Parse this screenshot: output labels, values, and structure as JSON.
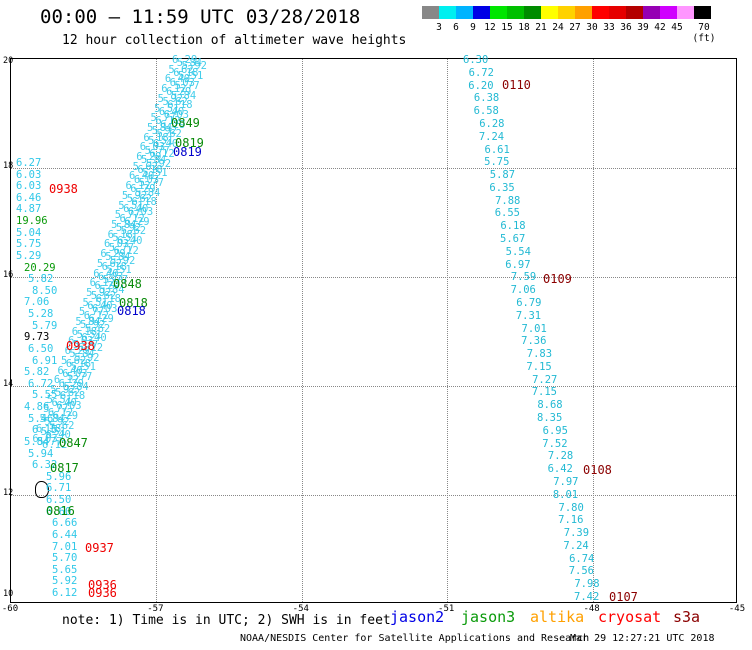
{
  "header": {
    "title": "00:00 – 11:59 UTC 03/28/2018",
    "subtitle": "12 hour collection of altimeter wave heights"
  },
  "legend": {
    "colors": [
      "#888888",
      "#00f0f0",
      "#00b4ff",
      "#0000e6",
      "#00e600",
      "#00c000",
      "#008c00",
      "#ffff00",
      "#ffd200",
      "#ffa000",
      "#ff0000",
      "#e60000",
      "#b40000",
      "#9600b4",
      "#d000ff",
      "#ff96ff",
      "#000000"
    ],
    "labels": [
      "3",
      "6",
      "9",
      "12",
      "15",
      "18",
      "21",
      "24",
      "27",
      "30",
      "33",
      "36",
      "39",
      "42",
      "45",
      "70 (ft)"
    ]
  },
  "map": {
    "lat_labels": [
      "20",
      "18",
      "16",
      "14",
      "12",
      "10"
    ],
    "lon_labels": [
      "-60",
      "-57",
      "-54",
      "-51",
      "-48",
      "-45"
    ]
  },
  "tracks": {
    "east": {
      "values": [
        "6.30",
        "6.72",
        "6.20",
        "6.38",
        "6.58",
        "6.28",
        "7.24",
        "6.61",
        "5.75",
        "5.87",
        "6.35",
        "7.88",
        "6.55",
        "6.18",
        "5.67",
        "5.54",
        "6.97",
        "7.59",
        "7.06",
        "6.79",
        "7.31",
        "7.01",
        "7.36",
        "7.83",
        "7.15",
        "7.27",
        "7.15",
        "8.68",
        "8.35",
        "6.95",
        "7.52",
        "7.28",
        "6.42",
        "7.97",
        "8.01",
        "7.80",
        "7.16",
        "7.39",
        "7.24",
        "6.74",
        "7.56",
        "7.98",
        "7.42"
      ],
      "times": [
        "0110",
        "0109",
        "0108",
        "0107"
      ]
    },
    "west_column": {
      "values": [
        "6.27",
        "6.03",
        "6.03",
        "6.46",
        "4.87",
        "19.96",
        "5.04",
        "5.75",
        "5.29",
        "20.29",
        "5.82",
        "8.50",
        "7.06",
        "5.28",
        "5.79",
        "9.73",
        "6.50",
        "6.91",
        "5.82",
        "6.72",
        "5.55",
        "4.86",
        "5.46",
        "6.15",
        "5.84",
        "5.94",
        "6.32",
        "5.96",
        "6.71",
        "6.50",
        "6.60",
        "6.66",
        "6.44",
        "7.01",
        "5.70",
        "5.65",
        "5.92",
        "6.12"
      ],
      "times_red": [
        "0938",
        "0938",
        "0937",
        "0936",
        "0936"
      ],
      "times_green": [
        "0849",
        "0819",
        "0848",
        "0818",
        "0847",
        "0817",
        "0816"
      ],
      "times_blue": [
        "0819",
        "0818"
      ]
    }
  },
  "footer": {
    "note": "note: 1) Time is in UTC; 2) SWH is in feet",
    "satellites": [
      {
        "name": "jason2",
        "color": "#0000e6"
      },
      {
        "name": "jason3",
        "color": "#0a9a0a"
      },
      {
        "name": "altika",
        "color": "#ffa000"
      },
      {
        "name": "cryosat",
        "color": "#ff0000"
      },
      {
        "name": "s3a",
        "color": "#8b0000"
      }
    ],
    "credit": "NOAA/NESDIS Center for Satellite Applications and Research",
    "generated": "Mar 29 12:27:21 UTC 2018"
  }
}
